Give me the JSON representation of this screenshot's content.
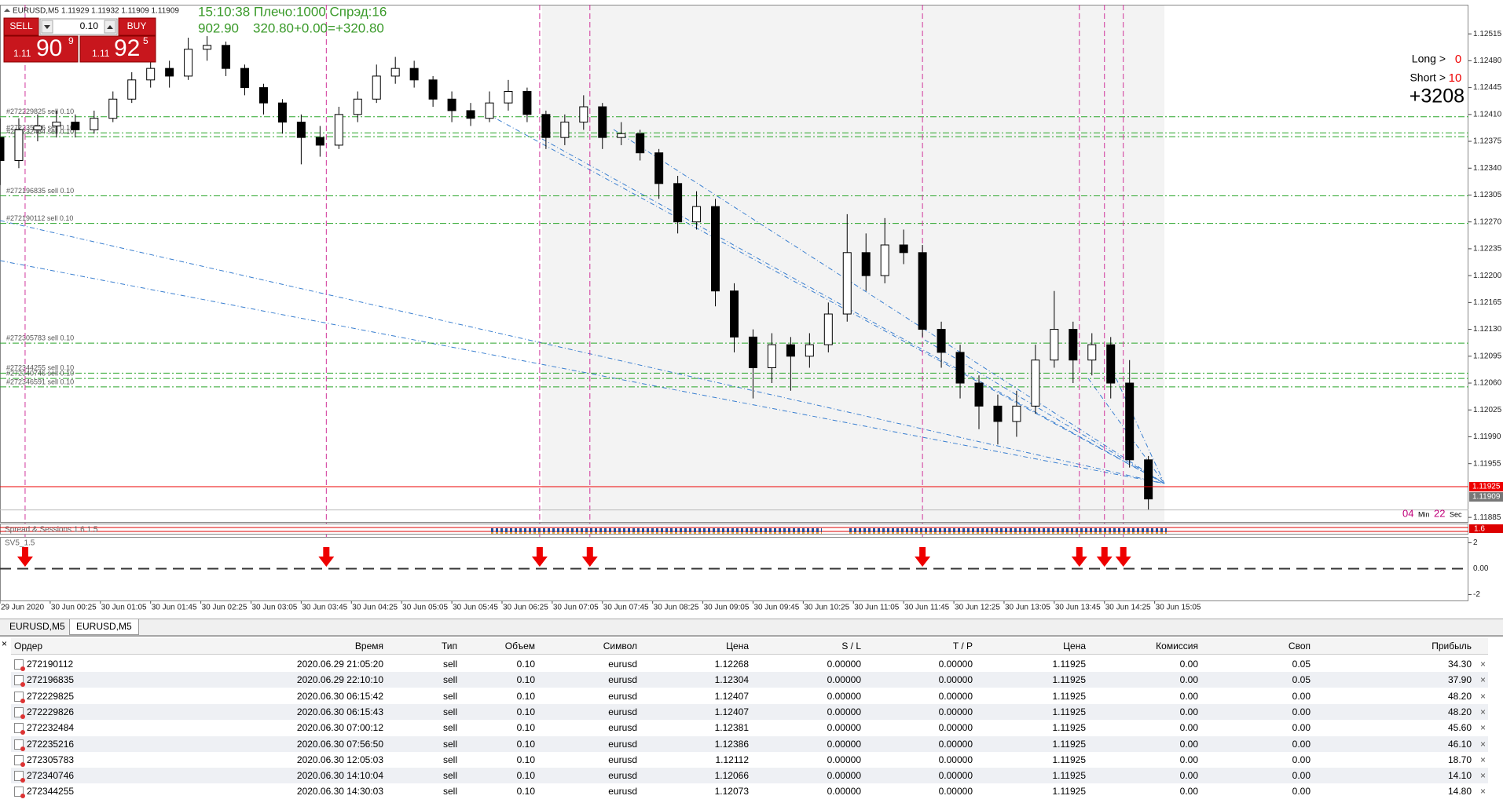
{
  "header": {
    "symbol": "EURUSD,M5",
    "quote": "1.11929 1.11932 1.11909 1.11909"
  },
  "trade_panel": {
    "sell": "SELL",
    "buy": "BUY",
    "lot": "0.10",
    "sell_price": [
      "1.11",
      "90",
      "9"
    ],
    "buy_price": [
      "1.11",
      "92",
      "5"
    ]
  },
  "account": {
    "line1": "15:10:38 Плечо:1000 Спрэд:16",
    "balance": "902.90",
    "profit": "320.80+0.00=+320.80"
  },
  "info": {
    "long_label": "Long >",
    "long_value": "0",
    "short_label": "Short >",
    "short_value": "10",
    "total": "+3208"
  },
  "timer": {
    "minutes": "04",
    "min_label": "Min",
    "seconds": "22",
    "sec_label": "Sec"
  },
  "chart_data": {
    "type": "candlestick",
    "xlim": [
      "29 Jun 23:45",
      "30 Jun 19:15"
    ],
    "xticks": [
      "29 Jun 2020",
      "30 Jun 00:25",
      "30 Jun 01:05",
      "30 Jun 01:45",
      "30 Jun 02:25",
      "30 Jun 03:05",
      "30 Jun 03:45",
      "30 Jun 04:25",
      "30 Jun 05:05",
      "30 Jun 05:45",
      "30 Jun 06:25",
      "30 Jun 07:05",
      "30 Jun 07:45",
      "30 Jun 08:25",
      "30 Jun 09:05",
      "30 Jun 09:45",
      "30 Jun 10:25",
      "30 Jun 11:05",
      "30 Jun 11:45",
      "30 Jun 12:25",
      "30 Jun 13:05",
      "30 Jun 13:45",
      "30 Jun 14:25",
      "30 Jun 15:05"
    ],
    "ylim": [
      1.11879,
      1.12553
    ],
    "yticks": [
      1.12515,
      {
        "value": 1.1248,
        "label": "1.12480"
      },
      1.12445,
      {
        "value": 1.1241,
        "label": "1.12410"
      },
      1.12375,
      {
        "value": 1.1234,
        "label": "1.12340"
      },
      1.12305,
      {
        "value": 1.1227,
        "label": "1.12270"
      },
      1.12235,
      {
        "value": 1.122,
        "label": "1.12200"
      },
      1.12165,
      {
        "value": 1.1213,
        "label": "1.12130"
      },
      1.12095,
      {
        "value": 1.1206,
        "label": "1.12060"
      },
      1.12025,
      {
        "value": 1.1199,
        "label": "1.11990"
      },
      1.11955,
      1.11885
    ],
    "bid": 1.11925,
    "last": 1.11909,
    "candles": {
      "time": [
        "29 Jun 23:45",
        "30 Jun 00:00",
        "30 Jun 00:15",
        "30 Jun 00:30",
        "30 Jun 00:45",
        "30 Jun 01:00",
        "30 Jun 01:15",
        "30 Jun 01:30",
        "30 Jun 01:45",
        "30 Jun 02:00",
        "30 Jun 02:15",
        "30 Jun 02:30",
        "30 Jun 02:45",
        "30 Jun 03:00",
        "30 Jun 03:15",
        "30 Jun 03:30",
        "30 Jun 03:45",
        "30 Jun 04:00",
        "30 Jun 04:15",
        "30 Jun 04:30",
        "30 Jun 04:45",
        "30 Jun 05:00",
        "30 Jun 05:15",
        "30 Jun 05:30",
        "30 Jun 05:45",
        "30 Jun 06:00",
        "30 Jun 06:15",
        "30 Jun 06:30",
        "30 Jun 06:45",
        "30 Jun 07:00",
        "30 Jun 07:15",
        "30 Jun 07:30",
        "30 Jun 07:45",
        "30 Jun 08:00",
        "30 Jun 08:15",
        "30 Jun 08:30",
        "30 Jun 08:45",
        "30 Jun 09:00",
        "30 Jun 09:15",
        "30 Jun 09:30",
        "30 Jun 09:45",
        "30 Jun 10:00",
        "30 Jun 10:15",
        "30 Jun 10:30",
        "30 Jun 10:45",
        "30 Jun 11:00",
        "30 Jun 11:15",
        "30 Jun 11:30",
        "30 Jun 11:45",
        "30 Jun 12:00",
        "30 Jun 12:15",
        "30 Jun 12:30",
        "30 Jun 12:45",
        "30 Jun 13:00",
        "30 Jun 13:15",
        "30 Jun 13:30",
        "30 Jun 13:45",
        "30 Jun 14:00",
        "30 Jun 14:15",
        "30 Jun 14:30",
        "30 Jun 14:45",
        "30 Jun 15:00"
      ],
      "open": [
        1.1238,
        1.1235,
        1.1239,
        1.12395,
        1.124,
        1.1239,
        1.12405,
        1.1243,
        1.12455,
        1.1247,
        1.1246,
        1.12495,
        1.125,
        1.1247,
        1.12445,
        1.12425,
        1.124,
        1.1238,
        1.1237,
        1.1241,
        1.1243,
        1.1246,
        1.1247,
        1.12455,
        1.1243,
        1.12415,
        1.12405,
        1.12425,
        1.1244,
        1.1241,
        1.1238,
        1.124,
        1.1242,
        1.1238,
        1.12385,
        1.1236,
        1.1232,
        1.1227,
        1.1229,
        1.1218,
        1.1212,
        1.1208,
        1.1211,
        1.12095,
        1.1211,
        1.1215,
        1.1223,
        1.122,
        1.1224,
        1.1223,
        1.1213,
        1.121,
        1.1206,
        1.1203,
        1.1201,
        1.1203,
        1.1209,
        1.1213,
        1.1209,
        1.1211,
        1.1206,
        1.1196
      ],
      "high": [
        1.12405,
        1.12405,
        1.1241,
        1.12415,
        1.1241,
        1.12415,
        1.1244,
        1.12465,
        1.1249,
        1.1248,
        1.1251,
        1.12512,
        1.12505,
        1.12475,
        1.1245,
        1.1243,
        1.1241,
        1.12395,
        1.1242,
        1.1244,
        1.12475,
        1.12485,
        1.1248,
        1.1246,
        1.1244,
        1.12425,
        1.1244,
        1.12455,
        1.12445,
        1.12415,
        1.1241,
        1.12435,
        1.12425,
        1.124,
        1.1239,
        1.12365,
        1.1233,
        1.1231,
        1.123,
        1.1219,
        1.1213,
        1.12125,
        1.1212,
        1.12125,
        1.12165,
        1.1228,
        1.12255,
        1.12275,
        1.1226,
        1.1224,
        1.1214,
        1.1211,
        1.1207,
        1.12045,
        1.1205,
        1.1211,
        1.1218,
        1.1214,
        1.12125,
        1.1212,
        1.1209,
        1.11965
      ],
      "low": [
        1.12318,
        1.1234,
        1.12375,
        1.1238,
        1.1238,
        1.12385,
        1.124,
        1.12425,
        1.12445,
        1.12445,
        1.12455,
        1.1248,
        1.1246,
        1.12435,
        1.1241,
        1.12385,
        1.12345,
        1.12355,
        1.12365,
        1.124,
        1.12425,
        1.1245,
        1.12445,
        1.1242,
        1.124,
        1.12395,
        1.124,
        1.12415,
        1.124,
        1.12365,
        1.1237,
        1.1239,
        1.12365,
        1.1237,
        1.1235,
        1.123,
        1.12255,
        1.1226,
        1.1216,
        1.121,
        1.1204,
        1.1206,
        1.1205,
        1.1208,
        1.121,
        1.1214,
        1.1218,
        1.1219,
        1.12215,
        1.1212,
        1.1208,
        1.1204,
        1.12,
        1.1198,
        1.1199,
        1.1202,
        1.1208,
        1.1206,
        1.1207,
        1.1204,
        1.1195,
        1.11895
      ],
      "close": [
        1.1235,
        1.1239,
        1.12395,
        1.124,
        1.1239,
        1.12405,
        1.1243,
        1.12455,
        1.1247,
        1.1246,
        1.12495,
        1.125,
        1.1247,
        1.12445,
        1.12425,
        1.124,
        1.1238,
        1.1237,
        1.1241,
        1.1243,
        1.1246,
        1.1247,
        1.12455,
        1.1243,
        1.12415,
        1.12405,
        1.12425,
        1.1244,
        1.1241,
        1.1238,
        1.124,
        1.1242,
        1.1238,
        1.12385,
        1.1236,
        1.1232,
        1.1227,
        1.1229,
        1.1218,
        1.1212,
        1.1208,
        1.1211,
        1.12095,
        1.1211,
        1.1215,
        1.1223,
        1.122,
        1.1224,
        1.1223,
        1.1213,
        1.121,
        1.1206,
        1.1203,
        1.1201,
        1.1203,
        1.1209,
        1.1213,
        1.1209,
        1.1211,
        1.1206,
        1.1196,
        1.11909
      ]
    },
    "orders": {
      "labels": [
        "#272229825 sell 0.10",
        "#272235216 sell 0.10",
        "#272232484 sell 0.10",
        "#272196835 sell 0.10",
        "#272190112 sell 0.10",
        "#272305783 sell 0.10",
        "#272344255 sell 0.10",
        "#272340746 sell 0.10",
        "#272346591 sell 0.10"
      ],
      "prices": [
        1.12407,
        1.12386,
        1.12381,
        1.12304,
        1.12268,
        1.12112,
        1.12073,
        1.12066,
        1.12055
      ]
    },
    "signals": [
      "30 Jun 00:05",
      "30 Jun 04:05",
      "30 Jun 06:55",
      "30 Jun 07:35",
      "30 Jun 12:00",
      "30 Jun 14:05",
      "30 Jun 14:25",
      "30 Jun 14:40"
    ],
    "spread_window": {
      "name": "Spread & Sessions 1.6 1.5",
      "value": 1.6
    },
    "indicator": {
      "name": "SV5_1.5",
      "ylim": [
        -2.45,
        2.45
      ],
      "yticks": [
        2,
        {
          "value": 0,
          "label": "0.00"
        },
        -2
      ]
    }
  },
  "tabs": [
    "EURUSD,M5",
    "EURUSD,M5"
  ],
  "table": {
    "columns": [
      "Ордер",
      "Время",
      "Тип",
      "Объем",
      "Символ",
      "Цена",
      "S / L",
      "T / P",
      "Цена",
      "Комиссия",
      "Своп",
      "Прибыль"
    ],
    "rows": [
      [
        "272190112",
        "2020.06.29 21:05:20",
        "sell",
        "0.10",
        "eurusd",
        "1.12268",
        "0.00000",
        "0.00000",
        "1.11925",
        "0.00",
        "0.05",
        "34.30"
      ],
      [
        "272196835",
        "2020.06.29 22:10:10",
        "sell",
        "0.10",
        "eurusd",
        "1.12304",
        "0.00000",
        "0.00000",
        "1.11925",
        "0.00",
        "0.05",
        "37.90"
      ],
      [
        "272229825",
        "2020.06.30 06:15:42",
        "sell",
        "0.10",
        "eurusd",
        "1.12407",
        "0.00000",
        "0.00000",
        "1.11925",
        "0.00",
        "0.00",
        "48.20"
      ],
      [
        "272229826",
        "2020.06.30 06:15:43",
        "sell",
        "0.10",
        "eurusd",
        "1.12407",
        "0.00000",
        "0.00000",
        "1.11925",
        "0.00",
        "0.00",
        "48.20"
      ],
      [
        "272232484",
        "2020.06.30 07:00:12",
        "sell",
        "0.10",
        "eurusd",
        "1.12381",
        "0.00000",
        "0.00000",
        "1.11925",
        "0.00",
        "0.00",
        "45.60"
      ],
      [
        "272235216",
        "2020.06.30 07:56:50",
        "sell",
        "0.10",
        "eurusd",
        "1.12386",
        "0.00000",
        "0.00000",
        "1.11925",
        "0.00",
        "0.00",
        "46.10"
      ],
      [
        "272305783",
        "2020.06.30 12:05:03",
        "sell",
        "0.10",
        "eurusd",
        "1.12112",
        "0.00000",
        "0.00000",
        "1.11925",
        "0.00",
        "0.00",
        "18.70"
      ],
      [
        "272340746",
        "2020.06.30 14:10:04",
        "sell",
        "0.10",
        "eurusd",
        "1.12066",
        "0.00000",
        "0.00000",
        "1.11925",
        "0.00",
        "0.00",
        "14.10"
      ],
      [
        "272344255",
        "2020.06.30 14:30:03",
        "sell",
        "0.10",
        "eurusd",
        "1.12073",
        "0.00000",
        "0.00000",
        "1.11925",
        "0.00",
        "0.00",
        "14.80"
      ]
    ]
  }
}
